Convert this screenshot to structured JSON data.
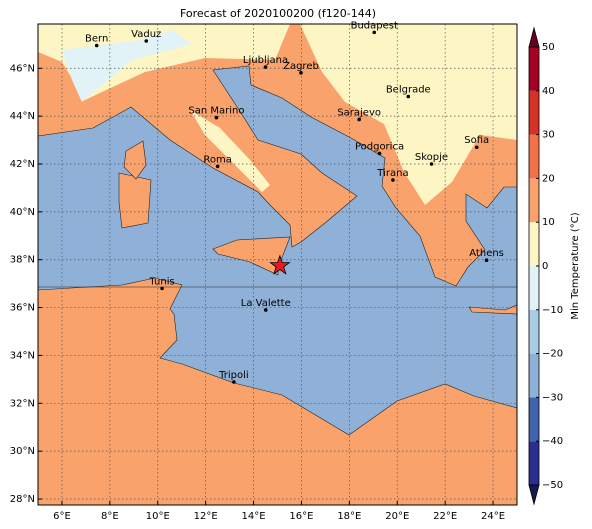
{
  "chart_data": {
    "type": "map",
    "title": "Forecast of 2020100200 (f120-144)",
    "xlim": [
      5,
      25
    ],
    "ylim": [
      27.75,
      47.85
    ],
    "grid": true,
    "xticks": [
      {
        "value": 6,
        "label": "6°E"
      },
      {
        "value": 8,
        "label": "8°E"
      },
      {
        "value": 10,
        "label": "10°E"
      },
      {
        "value": 12,
        "label": "12°E"
      },
      {
        "value": 14,
        "label": "14°E"
      },
      {
        "value": 16,
        "label": "16°E"
      },
      {
        "value": 18,
        "label": "18°E"
      },
      {
        "value": 20,
        "label": "20°E"
      },
      {
        "value": 22,
        "label": "22°E"
      },
      {
        "value": 24,
        "label": "24°E"
      }
    ],
    "yticks": [
      {
        "value": 28,
        "label": "28°N"
      },
      {
        "value": 30,
        "label": "30°N"
      },
      {
        "value": 32,
        "label": "32°N"
      },
      {
        "value": 34,
        "label": "34°N"
      },
      {
        "value": 36,
        "label": "36°N"
      },
      {
        "value": 38,
        "label": "38°N"
      },
      {
        "value": 40,
        "label": "40°N"
      },
      {
        "value": 42,
        "label": "42°N"
      },
      {
        "value": 44,
        "label": "44°N"
      },
      {
        "value": 46,
        "label": "46°N"
      }
    ],
    "cities": [
      {
        "name": "Bern",
        "lon": 7.45,
        "lat": 46.95
      },
      {
        "name": "Vaduz",
        "lon": 9.52,
        "lat": 47.14
      },
      {
        "name": "Budapest",
        "lon": 19.04,
        "lat": 47.5
      },
      {
        "name": "Ljubljana",
        "lon": 14.5,
        "lat": 46.05
      },
      {
        "name": "Zagreb",
        "lon": 15.98,
        "lat": 45.81
      },
      {
        "name": "Belgrade",
        "lon": 20.46,
        "lat": 44.82
      },
      {
        "name": "San Marino",
        "lon": 12.45,
        "lat": 43.94
      },
      {
        "name": "Sarajevo",
        "lon": 18.41,
        "lat": 43.86
      },
      {
        "name": "Sofia",
        "lon": 23.32,
        "lat": 42.7
      },
      {
        "name": "Podgorica",
        "lon": 19.26,
        "lat": 42.44
      },
      {
        "name": "Skopje",
        "lon": 21.43,
        "lat": 42.0
      },
      {
        "name": "Roma",
        "lon": 12.5,
        "lat": 41.9
      },
      {
        "name": "Tirana",
        "lon": 19.82,
        "lat": 41.33
      },
      {
        "name": "Athens",
        "lon": 23.73,
        "lat": 37.98
      },
      {
        "name": "Tunis",
        "lon": 10.18,
        "lat": 36.8
      },
      {
        "name": "La Valette",
        "lon": 14.51,
        "lat": 35.9
      },
      {
        "name": "Tripoli",
        "lon": 13.18,
        "lat": 32.89
      }
    ],
    "marker": {
      "lon": 15.1,
      "lat": 37.75,
      "color": "#e41a1c"
    },
    "colorbar": {
      "label": "Min Temperature (°C)",
      "ylim": [
        -50,
        50
      ],
      "ticks": [
        {
          "value": -50,
          "label": "−50"
        },
        {
          "value": -40,
          "label": "−40"
        },
        {
          "value": -30,
          "label": "−30"
        },
        {
          "value": -20,
          "label": "−20"
        },
        {
          "value": -10,
          "label": "−10"
        },
        0,
        10,
        20,
        30,
        40,
        50
      ],
      "colors": [
        "#2c2e8f",
        "#3f64a9",
        "#8fb1d7",
        "#a8cde5",
        "#e2f3f7",
        "#fdf5c4",
        "#f9a26c",
        "#f2704a",
        "#d73027",
        "#a50026"
      ],
      "extend_colors": [
        "#1a1650",
        "#67001f"
      ]
    }
  }
}
